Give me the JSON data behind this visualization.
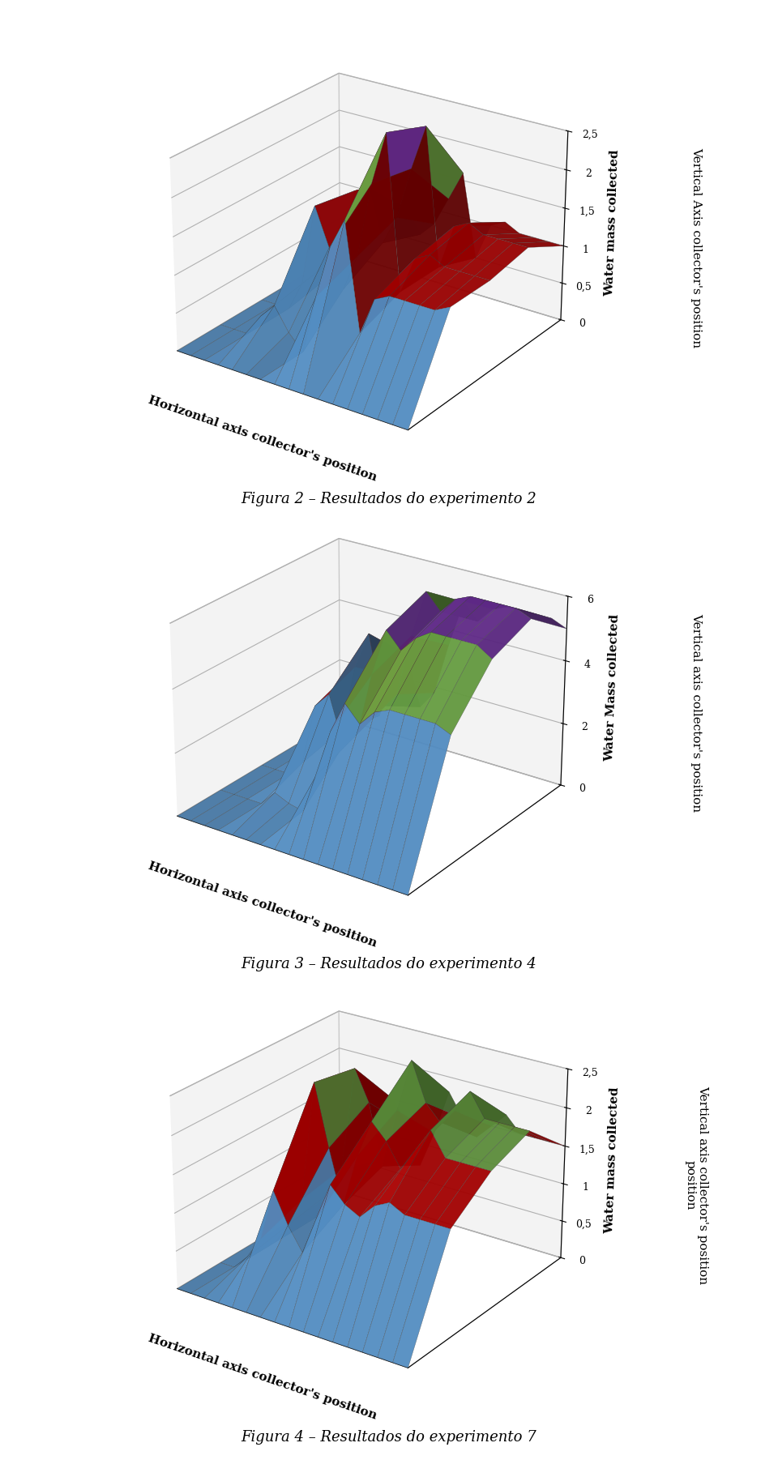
{
  "plots": [
    {
      "title": "Figura 2 – Resultados do experimento 2",
      "ylabel": "Water mass collected",
      "xlabel": "Horizontal axis collector's position",
      "zlabel": "Vertical Axis collector's position",
      "zlim": [
        0,
        2.5
      ],
      "zticks": [
        0,
        0.5,
        1,
        1.5,
        2,
        2.5
      ],
      "nx": 17,
      "ny": 5,
      "data": [
        [
          0,
          0,
          0,
          0,
          0,
          0,
          0,
          0,
          0,
          0,
          0,
          0,
          0,
          0,
          0,
          0,
          0
        ],
        [
          0,
          0,
          0,
          0.3,
          0.5,
          0.2,
          0,
          0.8,
          1.5,
          1.9,
          0.5,
          1.0,
          1.1,
          1.1,
          1.1,
          1.1,
          1.2
        ],
        [
          0,
          0,
          0,
          0.4,
          1.5,
          1.0,
          0.5,
          1.0,
          2.0,
          2.7,
          0.7,
          1.2,
          1.3,
          1.2,
          1.2,
          1.2,
          1.2
        ],
        [
          0,
          0,
          0.1,
          0.5,
          1.4,
          1.5,
          0.8,
          1.2,
          1.9,
          2.5,
          0.7,
          1.3,
          1.4,
          1.3,
          1.3,
          1.3,
          1.3
        ],
        [
          0,
          0,
          0.1,
          0.3,
          0.8,
          0.9,
          0.6,
          0.8,
          1.2,
          1.6,
          0.5,
          1.0,
          1.1,
          1.0,
          1.0,
          1.0,
          1.0
        ]
      ]
    },
    {
      "title": "Figura 3 – Resultados do experimento 4",
      "ylabel": "Water Mass collected",
      "xlabel": "Horizontal axis collector's position",
      "zlabel": "Vertical axis collector's position",
      "zlim": [
        0,
        6
      ],
      "zticks": [
        0,
        2,
        4,
        6
      ],
      "nx": 17,
      "ny": 5,
      "data": [
        [
          0,
          0,
          0,
          0,
          0,
          0,
          0,
          0,
          0,
          0,
          0,
          0,
          0,
          0,
          0,
          0,
          0
        ],
        [
          0,
          0,
          0,
          0,
          0.5,
          0.3,
          0.2,
          1.5,
          3.0,
          4.0,
          3.5,
          4.0,
          4.2,
          4.2,
          4.2,
          4.2,
          4.0
        ],
        [
          0,
          0,
          0,
          0.5,
          2.5,
          3.0,
          1.5,
          2.0,
          4.0,
          5.5,
          5.0,
          5.5,
          5.8,
          5.8,
          5.8,
          5.8,
          5.5
        ],
        [
          0,
          0,
          0.3,
          0.8,
          3.0,
          4.2,
          2.0,
          2.5,
          4.5,
          6.0,
          5.5,
          6.0,
          6.2,
          6.2,
          6.2,
          6.2,
          6.0
        ],
        [
          0,
          0,
          0.2,
          0.5,
          2.0,
          2.8,
          1.2,
          1.8,
          3.5,
          5.0,
          4.5,
          5.0,
          5.2,
          5.2,
          5.2,
          5.2,
          5.0
        ]
      ]
    },
    {
      "title": "Figura 4 – Resultados do experimento 7",
      "ylabel": "Water mass collected",
      "xlabel": "Horizontal axis collector's position",
      "zlabel": "Vertical axis collector's position\nposition",
      "zlim": [
        0,
        2.5
      ],
      "zticks": [
        0,
        0.5,
        1,
        1.5,
        2,
        2.5
      ],
      "nx": 17,
      "ny": 5,
      "data": [
        [
          0,
          0,
          0,
          0,
          0,
          0,
          0,
          0,
          0,
          0,
          0,
          0,
          0,
          0,
          0,
          0,
          0
        ],
        [
          0,
          0,
          0.2,
          0.5,
          1.2,
          0.8,
          0.5,
          1.0,
          1.5,
          1.3,
          1.2,
          1.4,
          1.5,
          1.4,
          1.4,
          1.4,
          1.4
        ],
        [
          0,
          0,
          0.3,
          0.7,
          2.3,
          1.5,
          0.8,
          1.5,
          2.0,
          1.8,
          1.5,
          1.8,
          2.1,
          1.8,
          1.8,
          1.8,
          1.8
        ],
        [
          0,
          0,
          0.4,
          0.8,
          2.2,
          1.8,
          1.0,
          1.8,
          2.5,
          2.0,
          1.8,
          2.0,
          2.3,
          2.0,
          2.0,
          2.0,
          2.0
        ],
        [
          0,
          0,
          0.3,
          0.6,
          1.5,
          1.2,
          0.7,
          1.2,
          1.8,
          1.5,
          1.3,
          1.5,
          1.7,
          1.5,
          1.5,
          1.5,
          1.5
        ]
      ]
    }
  ],
  "elev": 25,
  "azim": -55,
  "base_color": "#5B9BD5",
  "background_color": "#FFFFFF",
  "fig_label_fontsize": 13,
  "axis_label_fontsize": 11,
  "tick_fontsize": 9,
  "color_bands": [
    {
      "threshold": 0.45,
      "color": "#5B9BD5"
    },
    {
      "threshold": 0.72,
      "color": "#C00000"
    },
    {
      "threshold": 0.9,
      "color": "#70AD47"
    },
    {
      "threshold": 1.01,
      "color": "#7030A0"
    }
  ]
}
